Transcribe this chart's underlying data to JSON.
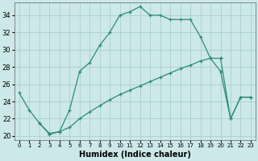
{
  "xlabel": "Humidex (Indice chaleur)",
  "color": "#2e8b7a",
  "bg_color": "#cce8e8",
  "grid_color": "#aacfcf",
  "ylim": [
    19.5,
    35.5
  ],
  "xlim": [
    -0.5,
    23.5
  ],
  "yticks": [
    20,
    22,
    24,
    26,
    28,
    30,
    32,
    34
  ],
  "xticks": [
    0,
    1,
    2,
    3,
    4,
    5,
    6,
    7,
    8,
    9,
    10,
    11,
    12,
    13,
    14,
    15,
    16,
    17,
    18,
    19,
    20,
    21,
    22,
    23
  ],
  "curve1_x": [
    0,
    1,
    2,
    3,
    4,
    5,
    6,
    7,
    8,
    9,
    10,
    11,
    12,
    13,
    14,
    15,
    16,
    17,
    18,
    19,
    20
  ],
  "curve1_y": [
    25.0,
    23.0,
    21.5,
    20.2,
    20.5,
    23.0,
    27.5,
    28.5,
    30.5,
    32.0,
    34.0,
    34.4,
    35.0,
    34.0,
    34.0,
    33.5,
    33.5,
    33.5,
    31.5,
    29.0,
    27.5
  ],
  "curve2_x": [
    2,
    3,
    4,
    5,
    6,
    7,
    8,
    9,
    10,
    11,
    12,
    13,
    14,
    15,
    16,
    17,
    18,
    19,
    20
  ],
  "curve2_y": [
    21.5,
    20.3,
    20.5,
    21.0,
    22.0,
    22.8,
    23.5,
    24.2,
    24.8,
    25.3,
    25.8,
    26.3,
    26.8,
    27.3,
    27.8,
    28.2,
    28.7,
    29.0,
    29.0
  ],
  "curve3_x": [
    20,
    21,
    22,
    23
  ],
  "curve3_y": [
    27.5,
    22.0,
    24.5,
    24.5
  ],
  "curve4_x": [
    20,
    21,
    22,
    23
  ],
  "curve4_y": [
    29.0,
    22.0,
    24.5,
    24.5
  ]
}
